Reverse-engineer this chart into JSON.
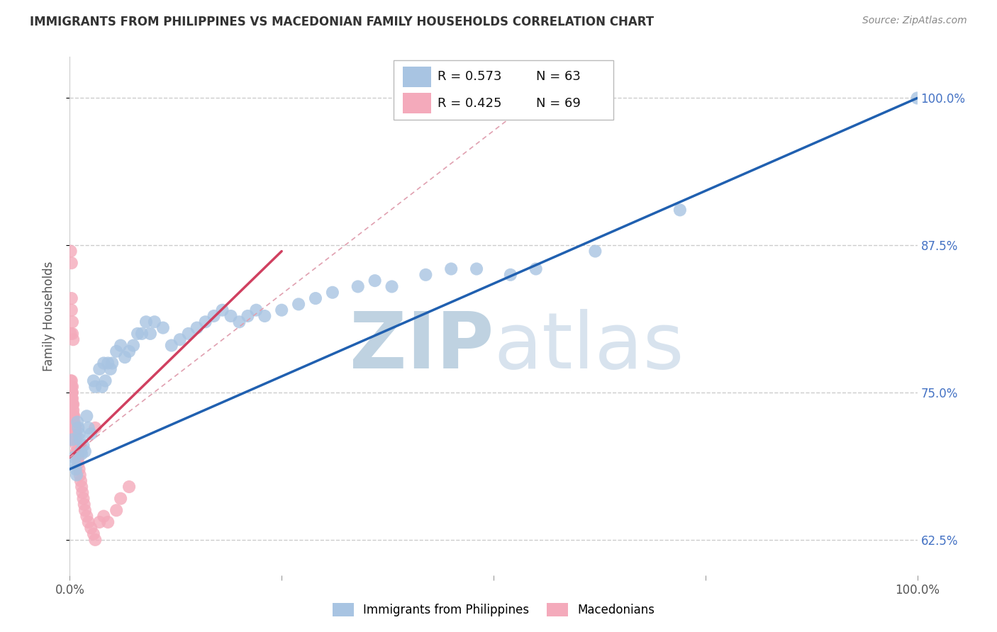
{
  "title": "IMMIGRANTS FROM PHILIPPINES VS MACEDONIAN FAMILY HOUSEHOLDS CORRELATION CHART",
  "source": "Source: ZipAtlas.com",
  "ylabel": "Family Households",
  "y_ticks": [
    0.625,
    0.75,
    0.875,
    1.0
  ],
  "y_tick_labels": [
    "62.5%",
    "75.0%",
    "87.5%",
    "100.0%"
  ],
  "legend_r1": "R = 0.573",
  "legend_n1": "N = 63",
  "legend_r2": "R = 0.425",
  "legend_n2": "N = 69",
  "blue_color": "#a8c4e2",
  "pink_color": "#f4aabb",
  "blue_line_color": "#2060b0",
  "pink_line_color": "#d04060",
  "pink_dash_color": "#e0a0b0",
  "watermark_color": "#ccdcee",
  "blue_scatter_x": [
    0.003,
    0.005,
    0.006,
    0.007,
    0.008,
    0.009,
    0.01,
    0.011,
    0.012,
    0.013,
    0.014,
    0.016,
    0.018,
    0.02,
    0.022,
    0.025,
    0.028,
    0.03,
    0.035,
    0.038,
    0.04,
    0.042,
    0.045,
    0.048,
    0.05,
    0.055,
    0.06,
    0.065,
    0.07,
    0.075,
    0.08,
    0.085,
    0.09,
    0.095,
    0.1,
    0.11,
    0.12,
    0.13,
    0.14,
    0.15,
    0.16,
    0.17,
    0.18,
    0.19,
    0.2,
    0.21,
    0.22,
    0.23,
    0.25,
    0.27,
    0.29,
    0.31,
    0.34,
    0.36,
    0.38,
    0.42,
    0.45,
    0.48,
    0.52,
    0.55,
    0.62,
    0.72,
    1.0
  ],
  "blue_scatter_y": [
    0.71,
    0.695,
    0.69,
    0.685,
    0.68,
    0.725,
    0.72,
    0.715,
    0.71,
    0.7,
    0.698,
    0.705,
    0.7,
    0.73,
    0.72,
    0.715,
    0.76,
    0.755,
    0.77,
    0.755,
    0.775,
    0.76,
    0.775,
    0.77,
    0.775,
    0.785,
    0.79,
    0.78,
    0.785,
    0.79,
    0.8,
    0.8,
    0.81,
    0.8,
    0.81,
    0.805,
    0.79,
    0.795,
    0.8,
    0.805,
    0.81,
    0.815,
    0.82,
    0.815,
    0.81,
    0.815,
    0.82,
    0.815,
    0.82,
    0.825,
    0.83,
    0.835,
    0.84,
    0.845,
    0.84,
    0.85,
    0.855,
    0.855,
    0.85,
    0.855,
    0.87,
    0.905,
    1.0
  ],
  "pink_scatter_x": [
    0.001,
    0.001,
    0.001,
    0.001,
    0.002,
    0.002,
    0.002,
    0.002,
    0.002,
    0.003,
    0.003,
    0.003,
    0.003,
    0.004,
    0.004,
    0.004,
    0.005,
    0.005,
    0.005,
    0.005,
    0.006,
    0.006,
    0.007,
    0.007,
    0.007,
    0.008,
    0.008,
    0.009,
    0.009,
    0.01,
    0.01,
    0.011,
    0.012,
    0.013,
    0.014,
    0.015,
    0.016,
    0.017,
    0.018,
    0.02,
    0.022,
    0.025,
    0.028,
    0.03,
    0.035,
    0.04,
    0.045,
    0.055,
    0.06,
    0.07,
    0.001,
    0.001,
    0.002,
    0.002,
    0.003,
    0.003,
    0.004,
    0.004,
    0.005,
    0.006,
    0.001,
    0.002,
    0.002,
    0.003,
    0.003,
    0.004,
    0.001,
    0.002,
    0.03
  ],
  "pink_scatter_y": [
    0.74,
    0.73,
    0.72,
    0.71,
    0.76,
    0.755,
    0.75,
    0.745,
    0.74,
    0.755,
    0.75,
    0.745,
    0.74,
    0.74,
    0.735,
    0.73,
    0.73,
    0.725,
    0.72,
    0.715,
    0.72,
    0.715,
    0.72,
    0.715,
    0.71,
    0.705,
    0.7,
    0.7,
    0.695,
    0.695,
    0.69,
    0.685,
    0.68,
    0.675,
    0.67,
    0.665,
    0.66,
    0.655,
    0.65,
    0.645,
    0.64,
    0.635,
    0.63,
    0.625,
    0.64,
    0.645,
    0.64,
    0.65,
    0.66,
    0.67,
    0.76,
    0.755,
    0.75,
    0.745,
    0.74,
    0.735,
    0.73,
    0.725,
    0.72,
    0.715,
    0.8,
    0.83,
    0.82,
    0.81,
    0.8,
    0.795,
    0.87,
    0.86,
    0.72
  ]
}
